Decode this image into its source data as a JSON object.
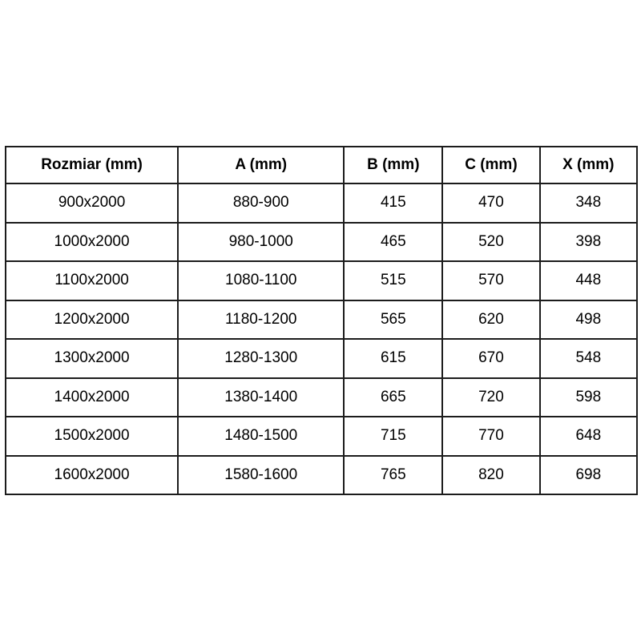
{
  "colors": {
    "background": "#ffffff",
    "border": "#1c1c1c",
    "text": "#000000"
  },
  "chart_data": {
    "type": "table",
    "columns": [
      "Rozmiar (mm)",
      "A (mm)",
      "B (mm)",
      "C (mm)",
      "X (mm)"
    ],
    "rows": [
      [
        "900x2000",
        "880-900",
        "415",
        "470",
        "348"
      ],
      [
        "1000x2000",
        "980-1000",
        "465",
        "520",
        "398"
      ],
      [
        "1100x2000",
        "1080-1100",
        "515",
        "570",
        "448"
      ],
      [
        "1200x2000",
        "1180-1200",
        "565",
        "620",
        "498"
      ],
      [
        "1300x2000",
        "1280-1300",
        "615",
        "670",
        "548"
      ],
      [
        "1400x2000",
        "1380-1400",
        "665",
        "720",
        "598"
      ],
      [
        "1500x2000",
        "1480-1500",
        "715",
        "770",
        "648"
      ],
      [
        "1600x2000",
        "1580-1600",
        "765",
        "820",
        "698"
      ]
    ]
  }
}
